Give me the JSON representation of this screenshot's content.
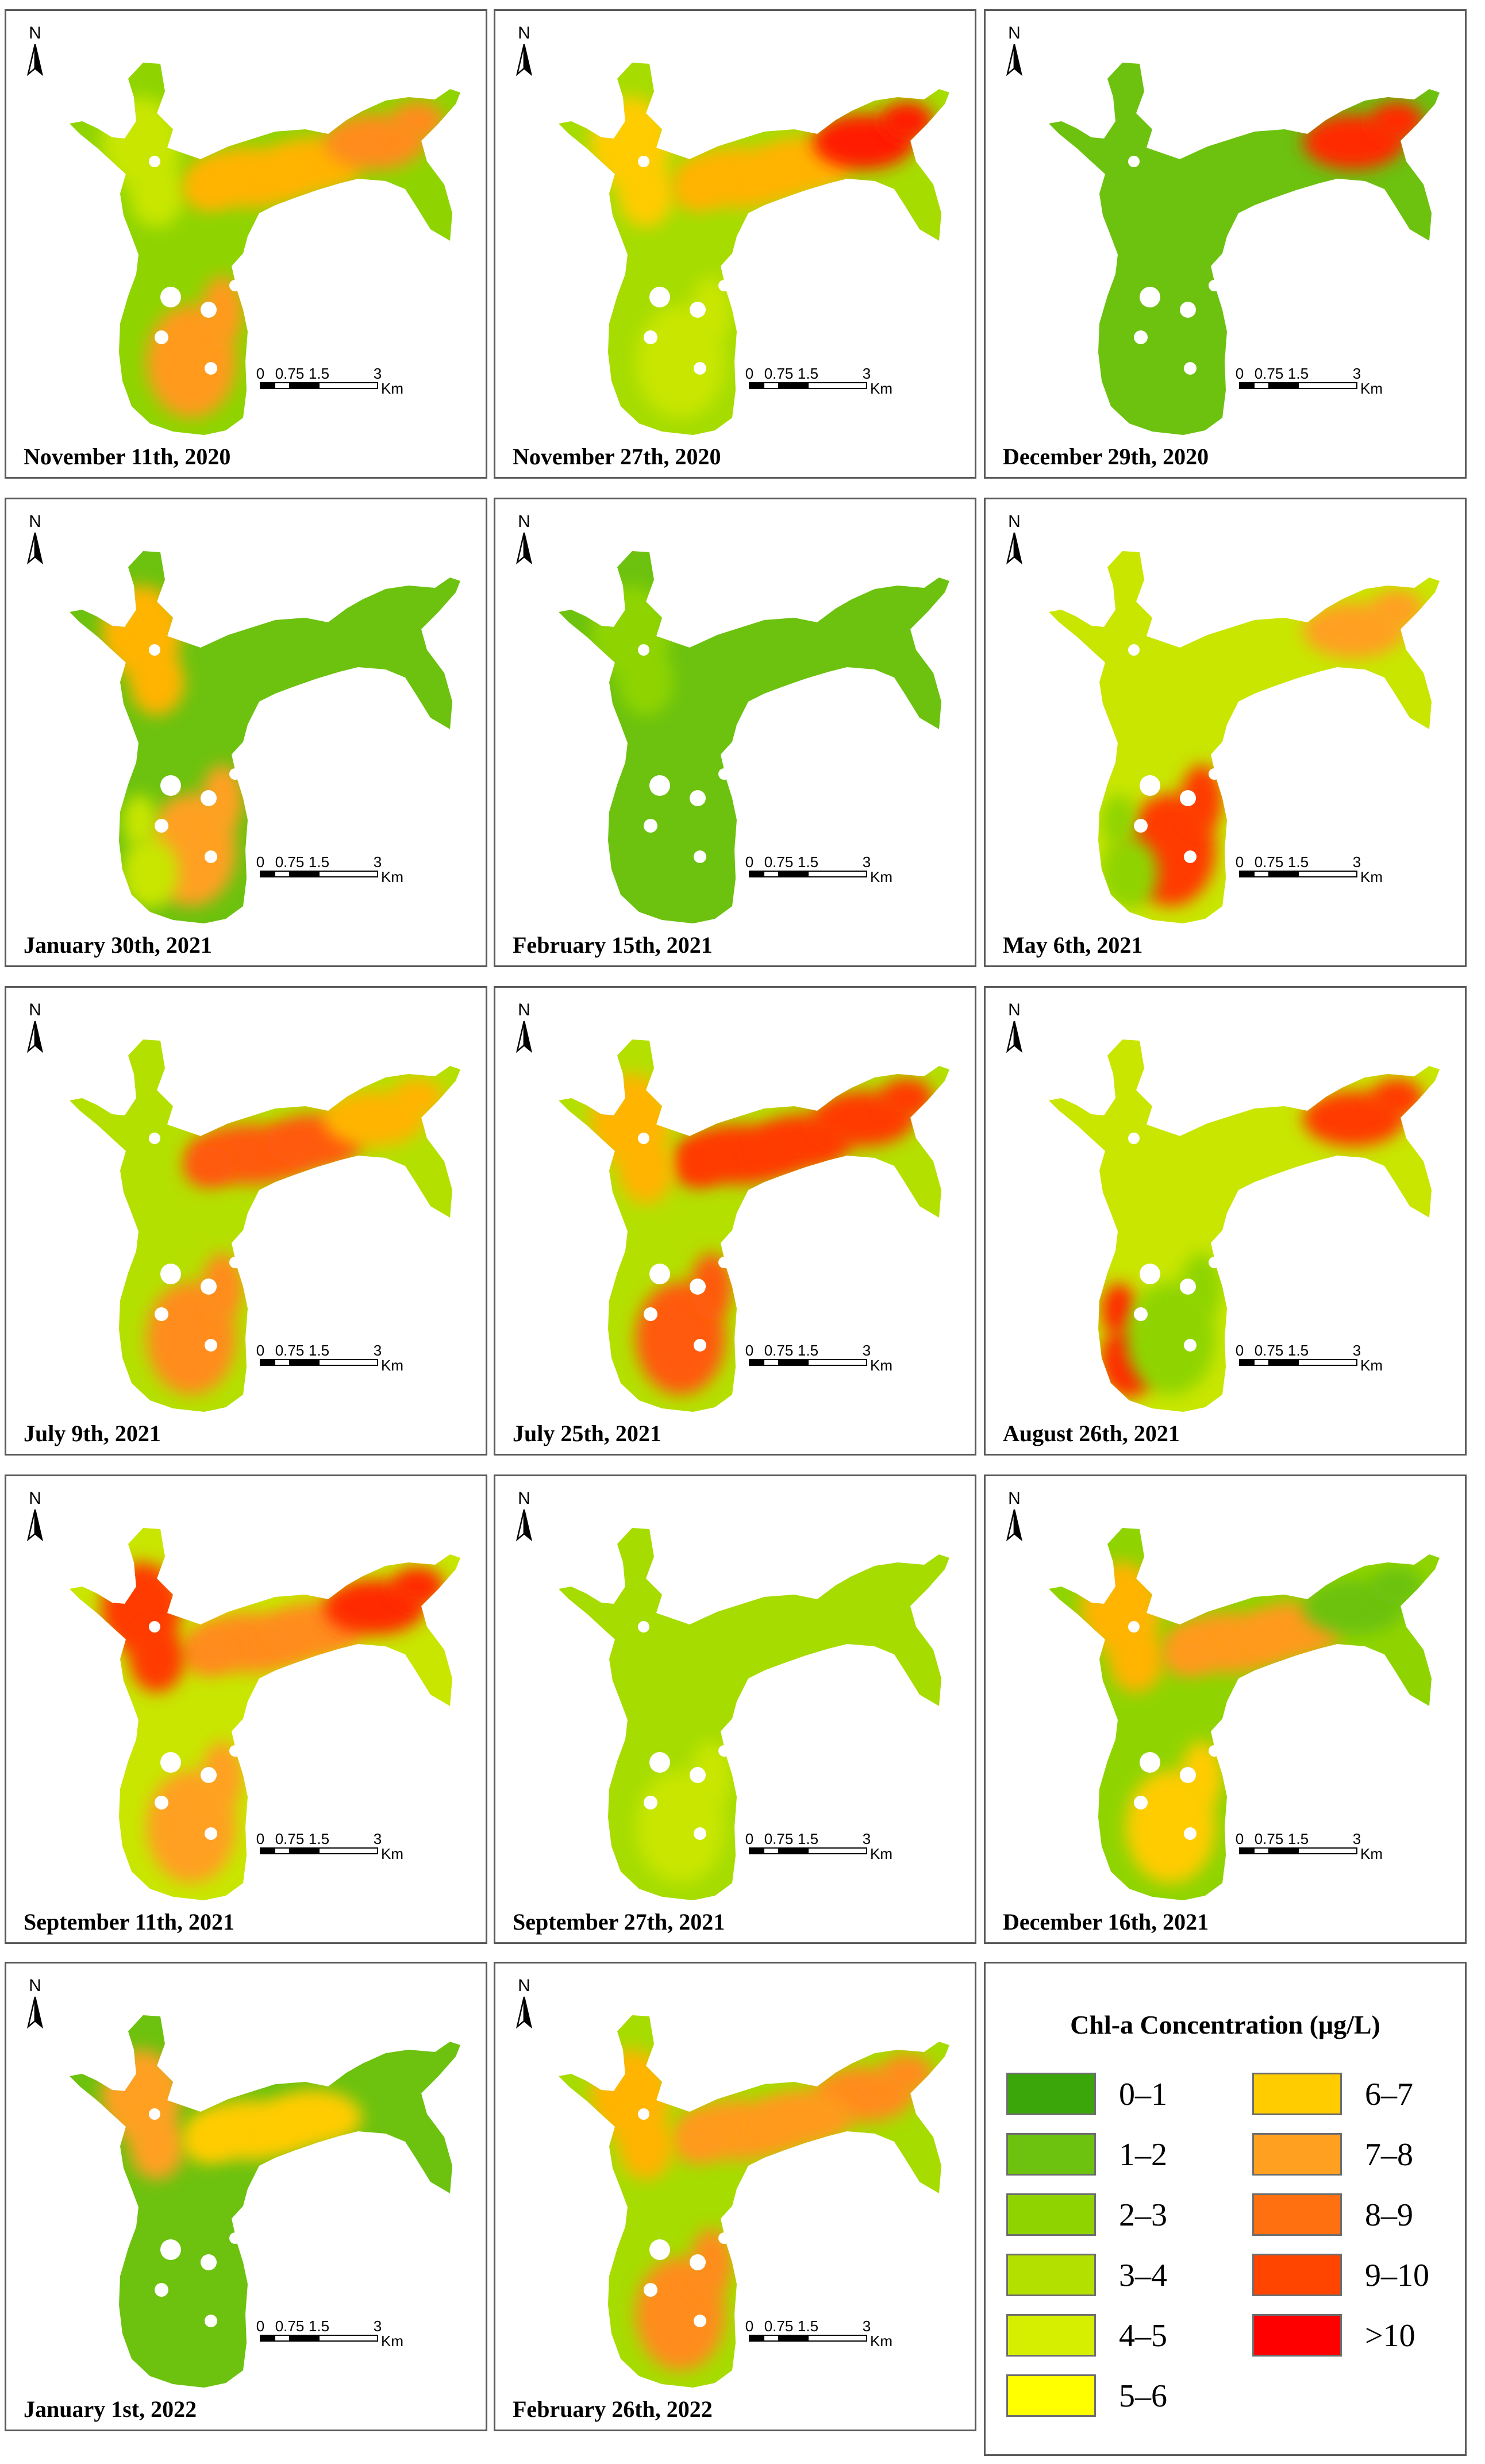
{
  "panels": [
    {
      "date": "November 11th, 2020",
      "base": "#8fd400",
      "blobs": [
        {
          "color": "#c8e600",
          "zone": "north"
        },
        {
          "color": "#ffb400",
          "zone": "center"
        },
        {
          "color": "#ff9a1a",
          "zone": "south"
        },
        {
          "color": "#ff8c1a",
          "zone": "east"
        }
      ]
    },
    {
      "date": "November 27th, 2020",
      "base": "#a6dc00",
      "blobs": [
        {
          "color": "#ffcc00",
          "zone": "north"
        },
        {
          "color": "#ffb400",
          "zone": "center"
        },
        {
          "color": "#ff1a00",
          "zone": "east"
        },
        {
          "color": "#c8e600",
          "zone": "south"
        }
      ]
    },
    {
      "date": "December 29th, 2020",
      "base": "#6cc20e",
      "blobs": [
        {
          "color": "#ff2a00",
          "zone": "east"
        }
      ]
    },
    {
      "date": "January 30th, 2021",
      "base": "#6cc20e",
      "blobs": [
        {
          "color": "#ffb400",
          "zone": "north"
        },
        {
          "color": "#ffa020",
          "zone": "south"
        },
        {
          "color": "#c8e600",
          "zone": "southwest"
        }
      ]
    },
    {
      "date": "February 15th, 2021",
      "base": "#6cc20e",
      "blobs": [
        {
          "color": "#8fd400",
          "zone": "north"
        }
      ]
    },
    {
      "date": "May 6th, 2021",
      "base": "#c8e600",
      "blobs": [
        {
          "color": "#ff3a00",
          "zone": "south"
        },
        {
          "color": "#ffa020",
          "zone": "east"
        },
        {
          "color": "#8fd400",
          "zone": "southwest"
        }
      ]
    },
    {
      "date": "July 9th, 2021",
      "base": "#b4e000",
      "blobs": [
        {
          "color": "#ff5a10",
          "zone": "center"
        },
        {
          "color": "#ff8c1a",
          "zone": "south"
        },
        {
          "color": "#ffb400",
          "zone": "east"
        }
      ]
    },
    {
      "date": "July 25th, 2021",
      "base": "#b4e000",
      "blobs": [
        {
          "color": "#ff3a00",
          "zone": "center"
        },
        {
          "color": "#ff5a10",
          "zone": "south"
        },
        {
          "color": "#ff3a00",
          "zone": "east"
        },
        {
          "color": "#ffb400",
          "zone": "north"
        }
      ]
    },
    {
      "date": "August 26th, 2021",
      "base": "#c8e600",
      "blobs": [
        {
          "color": "#ff3a00",
          "zone": "east"
        },
        {
          "color": "#ff2a00",
          "zone": "southwest"
        },
        {
          "color": "#8fd400",
          "zone": "south"
        }
      ]
    },
    {
      "date": "September 11th, 2021",
      "base": "#c8e600",
      "blobs": [
        {
          "color": "#ff8c1a",
          "zone": "center"
        },
        {
          "color": "#ff2a00",
          "zone": "east"
        },
        {
          "color": "#ffa020",
          "zone": "south"
        },
        {
          "color": "#ff3a00",
          "zone": "north"
        }
      ]
    },
    {
      "date": "September 27th, 2021",
      "base": "#a6dc00",
      "blobs": [
        {
          "color": "#c8e600",
          "zone": "south"
        }
      ]
    },
    {
      "date": "December 16th, 2021",
      "base": "#8fd400",
      "blobs": [
        {
          "color": "#ffb400",
          "zone": "north"
        },
        {
          "color": "#ff9a1a",
          "zone": "center"
        },
        {
          "color": "#ffcc00",
          "zone": "south"
        },
        {
          "color": "#6cc20e",
          "zone": "east"
        }
      ]
    },
    {
      "date": "January 1st, 2022",
      "base": "#6cc20e",
      "blobs": [
        {
          "color": "#ffa020",
          "zone": "north"
        },
        {
          "color": "#ffcc00",
          "zone": "center"
        }
      ]
    },
    {
      "date": "February 26th, 2022",
      "base": "#a6dc00",
      "blobs": [
        {
          "color": "#ff8c1a",
          "zone": "east"
        },
        {
          "color": "#ff9a1a",
          "zone": "center"
        },
        {
          "color": "#ff8c1a",
          "zone": "south"
        },
        {
          "color": "#ffb400",
          "zone": "north"
        }
      ]
    }
  ],
  "north_label": "N",
  "scale_bar": {
    "ticks": [
      "0",
      "0.75",
      "1.5",
      "3"
    ],
    "unit": "Km"
  },
  "legend": {
    "title": "Chl-a Concentration (μg/L)",
    "items": [
      {
        "label": "0–1",
        "color": "#3aa60a"
      },
      {
        "label": "1–2",
        "color": "#6cc20e"
      },
      {
        "label": "2–3",
        "color": "#8fd400"
      },
      {
        "label": "3–4",
        "color": "#b4e000"
      },
      {
        "label": "4–5",
        "color": "#d6ef00"
      },
      {
        "label": "5–6",
        "color": "#ffff00"
      },
      {
        "label": "6–7",
        "color": "#ffcc00"
      },
      {
        "label": "7–8",
        "color": "#ffa020"
      },
      {
        "label": "8–9",
        "color": "#ff7010"
      },
      {
        "label": "9–10",
        "color": "#ff4500"
      },
      {
        "label": ">10",
        "color": "#ff0000"
      }
    ]
  }
}
